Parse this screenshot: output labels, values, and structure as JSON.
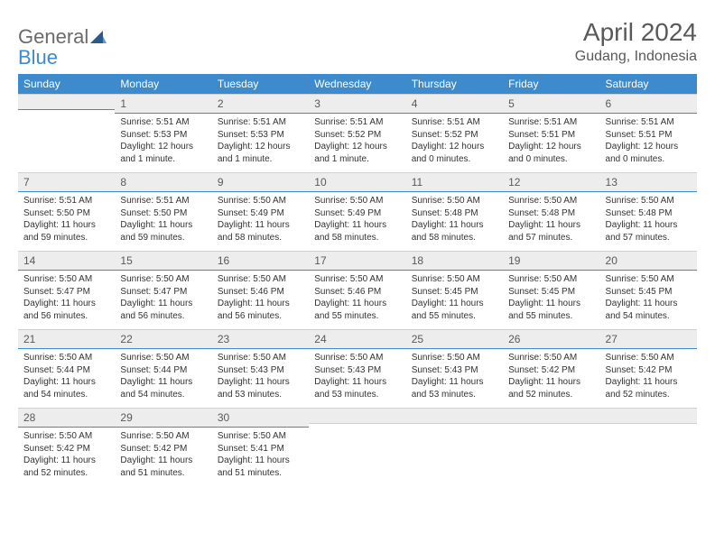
{
  "brand": {
    "part1": "General",
    "part2": "Blue"
  },
  "title": "April 2024",
  "location": "Gudang, Indonesia",
  "colors": {
    "header_bg": "#3d8bcc",
    "header_text": "#ffffff",
    "daynum_bg": "#ededed",
    "daynum_text": "#595959",
    "rule": "#3d8bcc",
    "body_text": "#333333",
    "title_text": "#595959"
  },
  "weekdays": [
    "Sunday",
    "Monday",
    "Tuesday",
    "Wednesday",
    "Thursday",
    "Friday",
    "Saturday"
  ],
  "weeks": [
    [
      {
        "n": "",
        "sr": "",
        "ss": "",
        "dl": ""
      },
      {
        "n": "1",
        "sr": "5:51 AM",
        "ss": "5:53 PM",
        "dl": "12 hours and 1 minute."
      },
      {
        "n": "2",
        "sr": "5:51 AM",
        "ss": "5:53 PM",
        "dl": "12 hours and 1 minute."
      },
      {
        "n": "3",
        "sr": "5:51 AM",
        "ss": "5:52 PM",
        "dl": "12 hours and 1 minute."
      },
      {
        "n": "4",
        "sr": "5:51 AM",
        "ss": "5:52 PM",
        "dl": "12 hours and 0 minutes."
      },
      {
        "n": "5",
        "sr": "5:51 AM",
        "ss": "5:51 PM",
        "dl": "12 hours and 0 minutes."
      },
      {
        "n": "6",
        "sr": "5:51 AM",
        "ss": "5:51 PM",
        "dl": "12 hours and 0 minutes."
      }
    ],
    [
      {
        "n": "7",
        "sr": "5:51 AM",
        "ss": "5:50 PM",
        "dl": "11 hours and 59 minutes."
      },
      {
        "n": "8",
        "sr": "5:51 AM",
        "ss": "5:50 PM",
        "dl": "11 hours and 59 minutes."
      },
      {
        "n": "9",
        "sr": "5:50 AM",
        "ss": "5:49 PM",
        "dl": "11 hours and 58 minutes."
      },
      {
        "n": "10",
        "sr": "5:50 AM",
        "ss": "5:49 PM",
        "dl": "11 hours and 58 minutes."
      },
      {
        "n": "11",
        "sr": "5:50 AM",
        "ss": "5:48 PM",
        "dl": "11 hours and 58 minutes."
      },
      {
        "n": "12",
        "sr": "5:50 AM",
        "ss": "5:48 PM",
        "dl": "11 hours and 57 minutes."
      },
      {
        "n": "13",
        "sr": "5:50 AM",
        "ss": "5:48 PM",
        "dl": "11 hours and 57 minutes."
      }
    ],
    [
      {
        "n": "14",
        "sr": "5:50 AM",
        "ss": "5:47 PM",
        "dl": "11 hours and 56 minutes."
      },
      {
        "n": "15",
        "sr": "5:50 AM",
        "ss": "5:47 PM",
        "dl": "11 hours and 56 minutes."
      },
      {
        "n": "16",
        "sr": "5:50 AM",
        "ss": "5:46 PM",
        "dl": "11 hours and 56 minutes."
      },
      {
        "n": "17",
        "sr": "5:50 AM",
        "ss": "5:46 PM",
        "dl": "11 hours and 55 minutes."
      },
      {
        "n": "18",
        "sr": "5:50 AM",
        "ss": "5:45 PM",
        "dl": "11 hours and 55 minutes."
      },
      {
        "n": "19",
        "sr": "5:50 AM",
        "ss": "5:45 PM",
        "dl": "11 hours and 55 minutes."
      },
      {
        "n": "20",
        "sr": "5:50 AM",
        "ss": "5:45 PM",
        "dl": "11 hours and 54 minutes."
      }
    ],
    [
      {
        "n": "21",
        "sr": "5:50 AM",
        "ss": "5:44 PM",
        "dl": "11 hours and 54 minutes."
      },
      {
        "n": "22",
        "sr": "5:50 AM",
        "ss": "5:44 PM",
        "dl": "11 hours and 54 minutes."
      },
      {
        "n": "23",
        "sr": "5:50 AM",
        "ss": "5:43 PM",
        "dl": "11 hours and 53 minutes."
      },
      {
        "n": "24",
        "sr": "5:50 AM",
        "ss": "5:43 PM",
        "dl": "11 hours and 53 minutes."
      },
      {
        "n": "25",
        "sr": "5:50 AM",
        "ss": "5:43 PM",
        "dl": "11 hours and 53 minutes."
      },
      {
        "n": "26",
        "sr": "5:50 AM",
        "ss": "5:42 PM",
        "dl": "11 hours and 52 minutes."
      },
      {
        "n": "27",
        "sr": "5:50 AM",
        "ss": "5:42 PM",
        "dl": "11 hours and 52 minutes."
      }
    ],
    [
      {
        "n": "28",
        "sr": "5:50 AM",
        "ss": "5:42 PM",
        "dl": "11 hours and 52 minutes."
      },
      {
        "n": "29",
        "sr": "5:50 AM",
        "ss": "5:42 PM",
        "dl": "11 hours and 51 minutes."
      },
      {
        "n": "30",
        "sr": "5:50 AM",
        "ss": "5:41 PM",
        "dl": "11 hours and 51 minutes."
      },
      {
        "n": "",
        "sr": "",
        "ss": "",
        "dl": ""
      },
      {
        "n": "",
        "sr": "",
        "ss": "",
        "dl": ""
      },
      {
        "n": "",
        "sr": "",
        "ss": "",
        "dl": ""
      },
      {
        "n": "",
        "sr": "",
        "ss": "",
        "dl": ""
      }
    ]
  ],
  "labels": {
    "sunrise": "Sunrise:",
    "sunset": "Sunset:",
    "daylight": "Daylight:"
  }
}
